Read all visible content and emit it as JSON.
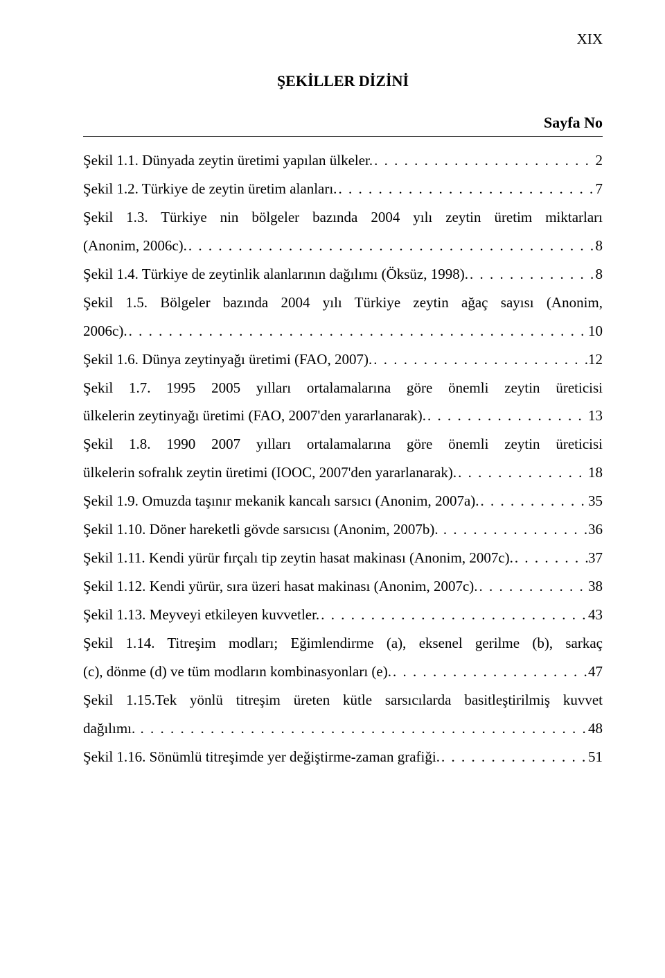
{
  "page_number_roman": "XIX",
  "title": "ŞEKİLLER DİZİNİ",
  "column_label": "Sayfa No",
  "entries": [
    {
      "text": "Şekil 1.1. Dünyada zeytin üretimi yapılan ülkeler.",
      "page": "2"
    },
    {
      "text": "Şekil 1.2. Türkiye de zeytin üretim alanları.",
      "page": "7"
    },
    {
      "text": "Şekil 1.3. Türkiye nin bölgeler bazında 2004 yılı zeytin üretim miktarları",
      "cont": "(Anonim, 2006c).",
      "page": "8"
    },
    {
      "text": "Şekil 1.4. Türkiye de zeytinlik alanlarının dağılımı (Öksüz, 1998).",
      "page": "8"
    },
    {
      "text": "Şekil 1.5. Bölgeler bazında 2004 yılı Türkiye zeytin ağaç sayısı (Anonim,",
      "cont": "2006c).",
      "page": "10"
    },
    {
      "text": "Şekil 1.6. Dünya zeytinyağı üretimi (FAO, 2007).",
      "page": "12"
    },
    {
      "text": "Şekil 1.7. 1995 2005 yılları ortalamalarına göre önemli zeytin üreticisi",
      "cont": "ülkelerin zeytinyağı üretimi (FAO, 2007'den yararlanarak).",
      "page": "13"
    },
    {
      "text": "Şekil 1.8. 1990 2007 yılları ortalamalarına göre önemli zeytin üreticisi",
      "cont": "ülkelerin sofralık zeytin üretimi (IOOC, 2007'den yararlanarak).",
      "page": "18"
    },
    {
      "text": "Şekil 1.9. Omuzda taşınır mekanik kancalı sarsıcı (Anonim, 2007a).",
      "page": "35"
    },
    {
      "text": "Şekil 1.10. Döner hareketli gövde sarsıcısı (Anonim, 2007b). ",
      "page": "36"
    },
    {
      "text": "Şekil 1.11. Kendi yürür fırçalı tip zeytin hasat makinası (Anonim, 2007c).",
      "page": "37"
    },
    {
      "text": "Şekil 1.12. Kendi yürür, sıra üzeri hasat makinası (Anonim, 2007c).",
      "page": "38"
    },
    {
      "text": "Şekil 1.13. Meyveyi etkileyen kuvvetler.",
      "page": "43"
    },
    {
      "text": "Şekil 1.14. Titreşim modları; Eğimlendirme (a), eksenel gerilme (b), sarkaç",
      "cont": "(c), dönme (d) ve tüm modların kombinasyonları (e).",
      "page": "47"
    },
    {
      "text": "Şekil 1.15.Tek yönlü titreşim üreten kütle sarsıcılarda basitleştirilmiş kuvvet",
      "cont": "dağılımı. ",
      "page": "48"
    },
    {
      "text": "Şekil 1.16. Sönümlü titreşimde yer değiştirme-zaman grafiği.",
      "page": "51"
    }
  ],
  "style": {
    "font_family": "Times New Roman",
    "title_fontsize": 22,
    "body_fontsize": 21,
    "text_color": "#000000",
    "background_color": "#ffffff",
    "line_height": 1.95,
    "hr_color": "#000000"
  }
}
